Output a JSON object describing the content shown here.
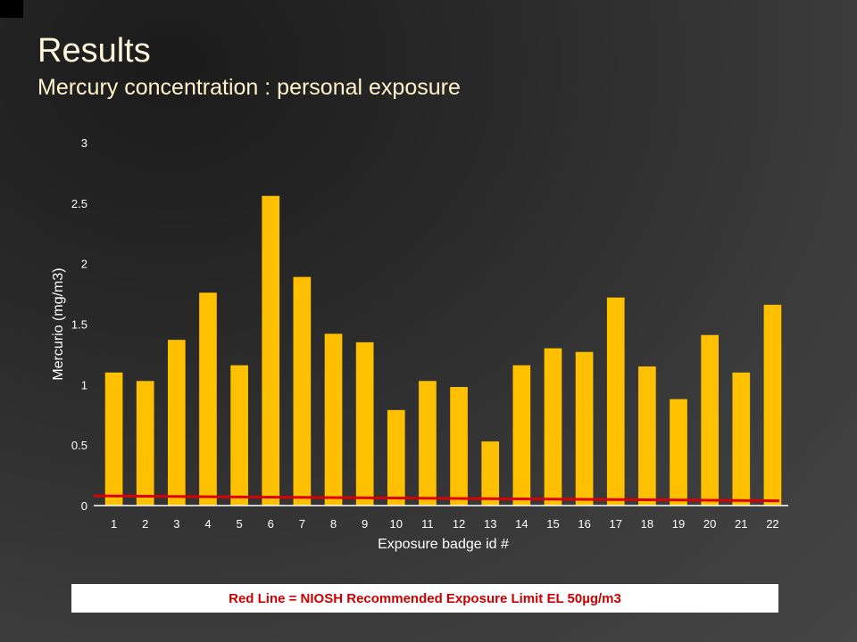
{
  "slide": {
    "title": "Results",
    "subtitle": "Mercury concentration : personal exposure"
  },
  "note": {
    "text": "Red Line = NIOSH Recommended Exposure Limit EL 50µg/m3"
  },
  "chart_data": {
    "type": "bar",
    "categories": [
      "1",
      "2",
      "3",
      "4",
      "5",
      "6",
      "7",
      "8",
      "9",
      "10",
      "11",
      "12",
      "13",
      "14",
      "15",
      "16",
      "17",
      "18",
      "19",
      "20",
      "21",
      "22"
    ],
    "values": [
      1.1,
      1.03,
      1.37,
      1.76,
      1.16,
      2.56,
      1.89,
      1.42,
      1.35,
      0.79,
      1.03,
      0.98,
      0.53,
      1.16,
      1.3,
      1.27,
      1.72,
      1.15,
      0.88,
      1.41,
      1.1,
      1.66
    ],
    "xlabel": "Exposure badge id #",
    "ylabel": "Mercurio (mg/m3)",
    "ylim": [
      0,
      3
    ],
    "yticks": [
      "0",
      "0.5",
      "1",
      "1.5",
      "2",
      "2.5",
      "3"
    ],
    "reference_line": {
      "y_start": 0.08,
      "y_end": 0.04
    },
    "colors": {
      "bar": "#ffc000",
      "reference_line": "#dd0000",
      "axis": "#ffffff"
    },
    "grid": false
  }
}
